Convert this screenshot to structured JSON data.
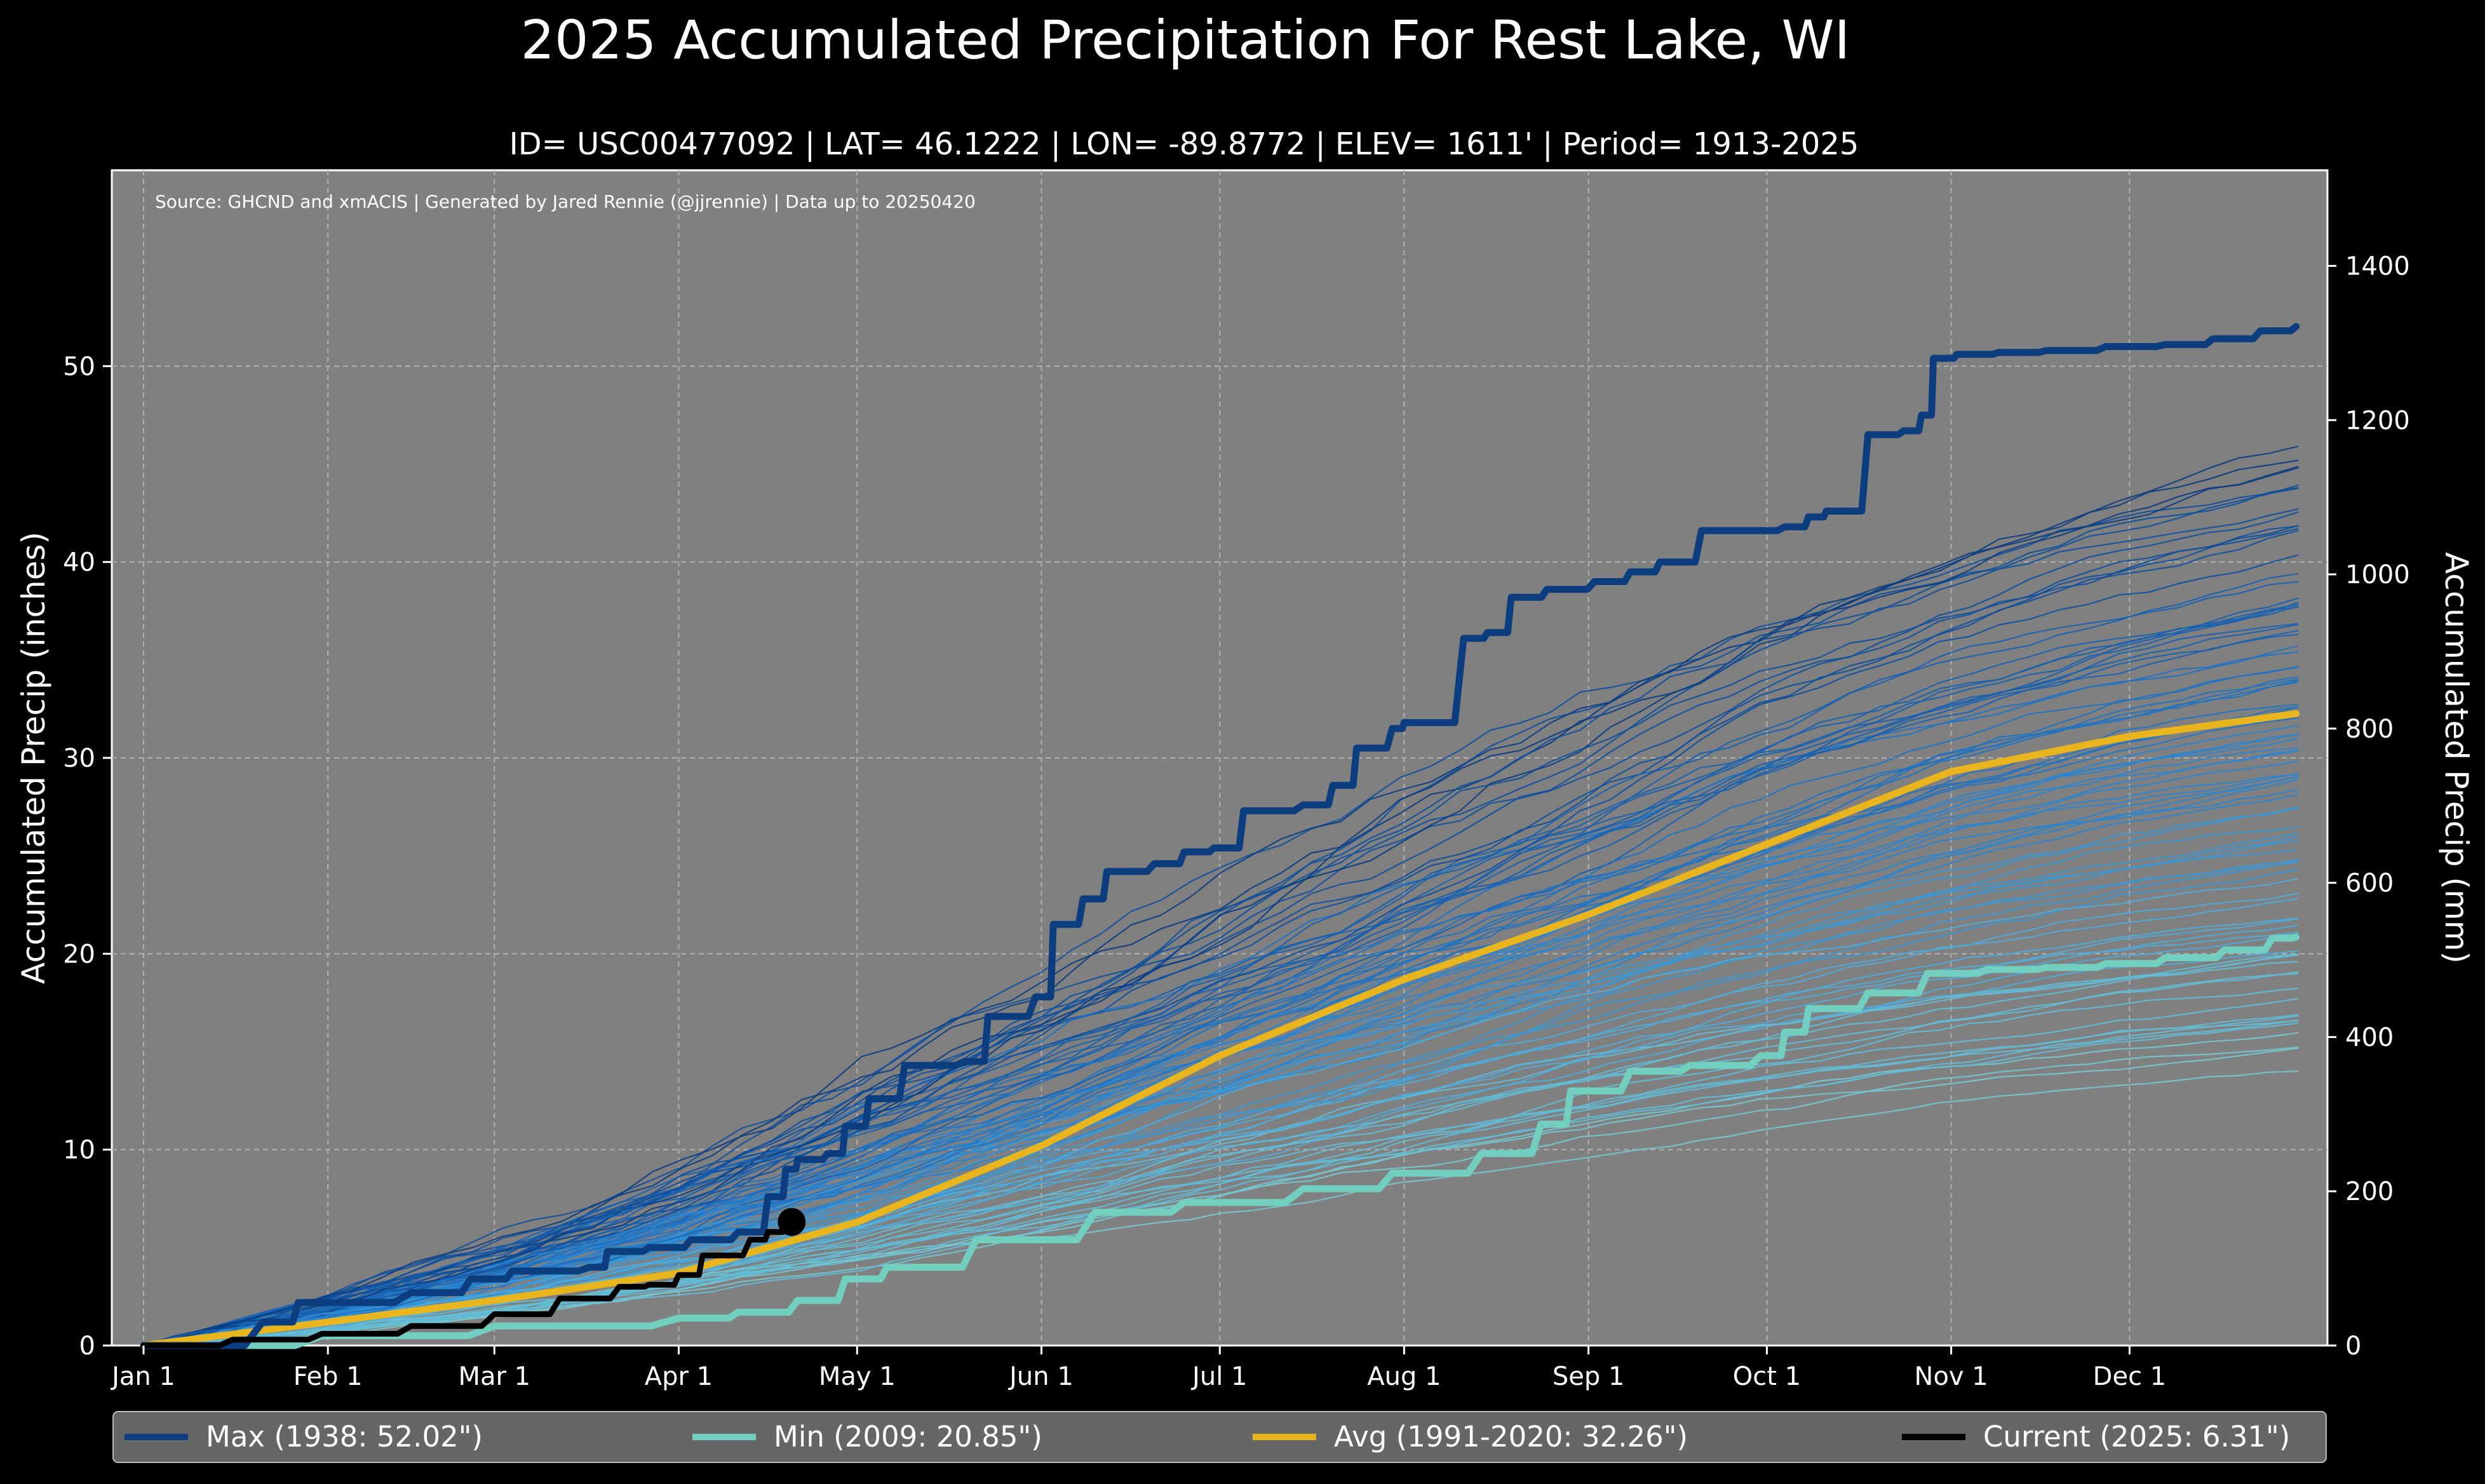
{
  "title": "2025 Accumulated Precipitation For Rest Lake, WI",
  "subtitle": "ID= USC00477092 | LAT= 46.1222 | LON= -89.8772 | ELEV= 1611' | Period= 1913-2025",
  "source": "Source: GHCND and xmACIS | Generated by Jared Rennie (@jjrennie) | Data up to 20250420",
  "colors": {
    "background": "#000000",
    "plot_bg": "#808080",
    "max": "#0b3d7f",
    "min": "#72cfc0",
    "avg": "#e8b51e",
    "current": "#000000"
  },
  "chart_data": {
    "type": "line",
    "xlabel": "",
    "ylabel": "Accumulated Precip (inches)",
    "ylabel_right": "Accumulated Precip (mm)",
    "xlim": [
      0,
      366
    ],
    "ylim": [
      0,
      60
    ],
    "ylim_right_mm": [
      0,
      1524
    ],
    "grid": true,
    "x_ticks": [
      {
        "label": "Jan 1",
        "day": 0
      },
      {
        "label": "Feb 1",
        "day": 31
      },
      {
        "label": "Mar 1",
        "day": 59
      },
      {
        "label": "Apr 1",
        "day": 90
      },
      {
        "label": "May 1",
        "day": 120
      },
      {
        "label": "Jun 1",
        "day": 151
      },
      {
        "label": "Jul 1",
        "day": 181
      },
      {
        "label": "Aug 1",
        "day": 212
      },
      {
        "label": "Sep 1",
        "day": 243
      },
      {
        "label": "Oct 1",
        "day": 273
      },
      {
        "label": "Nov 1",
        "day": 304
      },
      {
        "label": "Dec 1",
        "day": 334
      }
    ],
    "y_ticks": [
      0,
      10,
      20,
      30,
      40,
      50
    ],
    "y_ticks_right": [
      0,
      200,
      400,
      600,
      800,
      1000,
      1200,
      1400
    ],
    "series": [
      {
        "name": "Max",
        "label": "Max (1938:  52.02\")",
        "style": "max",
        "x": [
          0,
          20,
          26,
          45,
          55,
          62,
          75,
          78,
          85,
          92,
          100,
          105,
          108,
          110,
          115,
          118,
          122,
          128,
          138,
          142,
          150,
          153,
          158,
          162,
          170,
          175,
          180,
          185,
          195,
          200,
          204,
          210,
          212,
          222,
          226,
          230,
          236,
          244,
          250,
          255,
          262,
          268,
          276,
          280,
          283,
          290,
          296,
          299,
          301,
          305,
          312,
          320,
          330,
          340,
          348,
          356,
          362
        ],
        "values": [
          0.0,
          1.2,
          2.2,
          2.7,
          3.4,
          3.8,
          4.0,
          4.8,
          5.0,
          5.4,
          5.8,
          7.6,
          9.0,
          9.5,
          9.8,
          11.2,
          12.6,
          14.3,
          14.5,
          16.8,
          17.8,
          21.5,
          22.8,
          24.2,
          24.6,
          25.2,
          25.4,
          27.3,
          27.6,
          28.6,
          30.5,
          31.5,
          31.8,
          36.1,
          36.4,
          38.2,
          38.6,
          39.0,
          39.5,
          40.0,
          41.6,
          41.6,
          41.8,
          42.3,
          42.6,
          46.5,
          46.7,
          47.5,
          50.4,
          50.6,
          50.7,
          50.8,
          51.0,
          51.1,
          51.4,
          51.8,
          52.02
        ]
      },
      {
        "name": "Min",
        "label": "Min (2009:  20.85\")",
        "style": "min",
        "x": [
          0,
          30,
          59,
          90,
          100,
          110,
          118,
          125,
          140,
          160,
          175,
          195,
          210,
          225,
          235,
          240,
          250,
          260,
          272,
          276,
          280,
          290,
          300,
          310,
          320,
          330,
          340,
          350,
          358,
          362
        ],
        "values": [
          0.0,
          0.5,
          1.0,
          1.4,
          1.7,
          2.3,
          3.4,
          4.0,
          5.4,
          6.8,
          7.3,
          8.0,
          8.8,
          9.8,
          11.3,
          13.0,
          14.0,
          14.3,
          14.8,
          16.0,
          17.2,
          18.0,
          19.0,
          19.2,
          19.3,
          19.5,
          19.8,
          20.2,
          20.8,
          20.85
        ]
      },
      {
        "name": "Avg",
        "label": "Avg (1991-2020:  32.26\")",
        "style": "avg",
        "x": [
          0,
          31,
          59,
          90,
          120,
          151,
          181,
          212,
          243,
          273,
          304,
          334,
          362
        ],
        "values": [
          0.0,
          1.2,
          2.3,
          3.7,
          6.3,
          10.2,
          14.8,
          18.7,
          22.0,
          25.6,
          29.3,
          31.1,
          32.26
        ]
      },
      {
        "name": "Current",
        "label": "Current (2025:   6.31\")",
        "style": "current",
        "x": [
          0,
          15,
          30,
          45,
          59,
          70,
          80,
          85,
          90,
          94,
          102,
          105,
          108,
          109
        ],
        "values": [
          0.0,
          0.3,
          0.6,
          1.0,
          1.6,
          2.4,
          3.0,
          3.1,
          3.6,
          4.6,
          5.4,
          5.8,
          6.2,
          6.31
        ]
      }
    ],
    "legend": {
      "position": "bottom",
      "entries": [
        "Max (1938:  52.02\")",
        "Min (2009:  20.85\")",
        "Avg (1991-2020:  32.26\")",
        "Current (2025:   6.31\")"
      ]
    }
  }
}
